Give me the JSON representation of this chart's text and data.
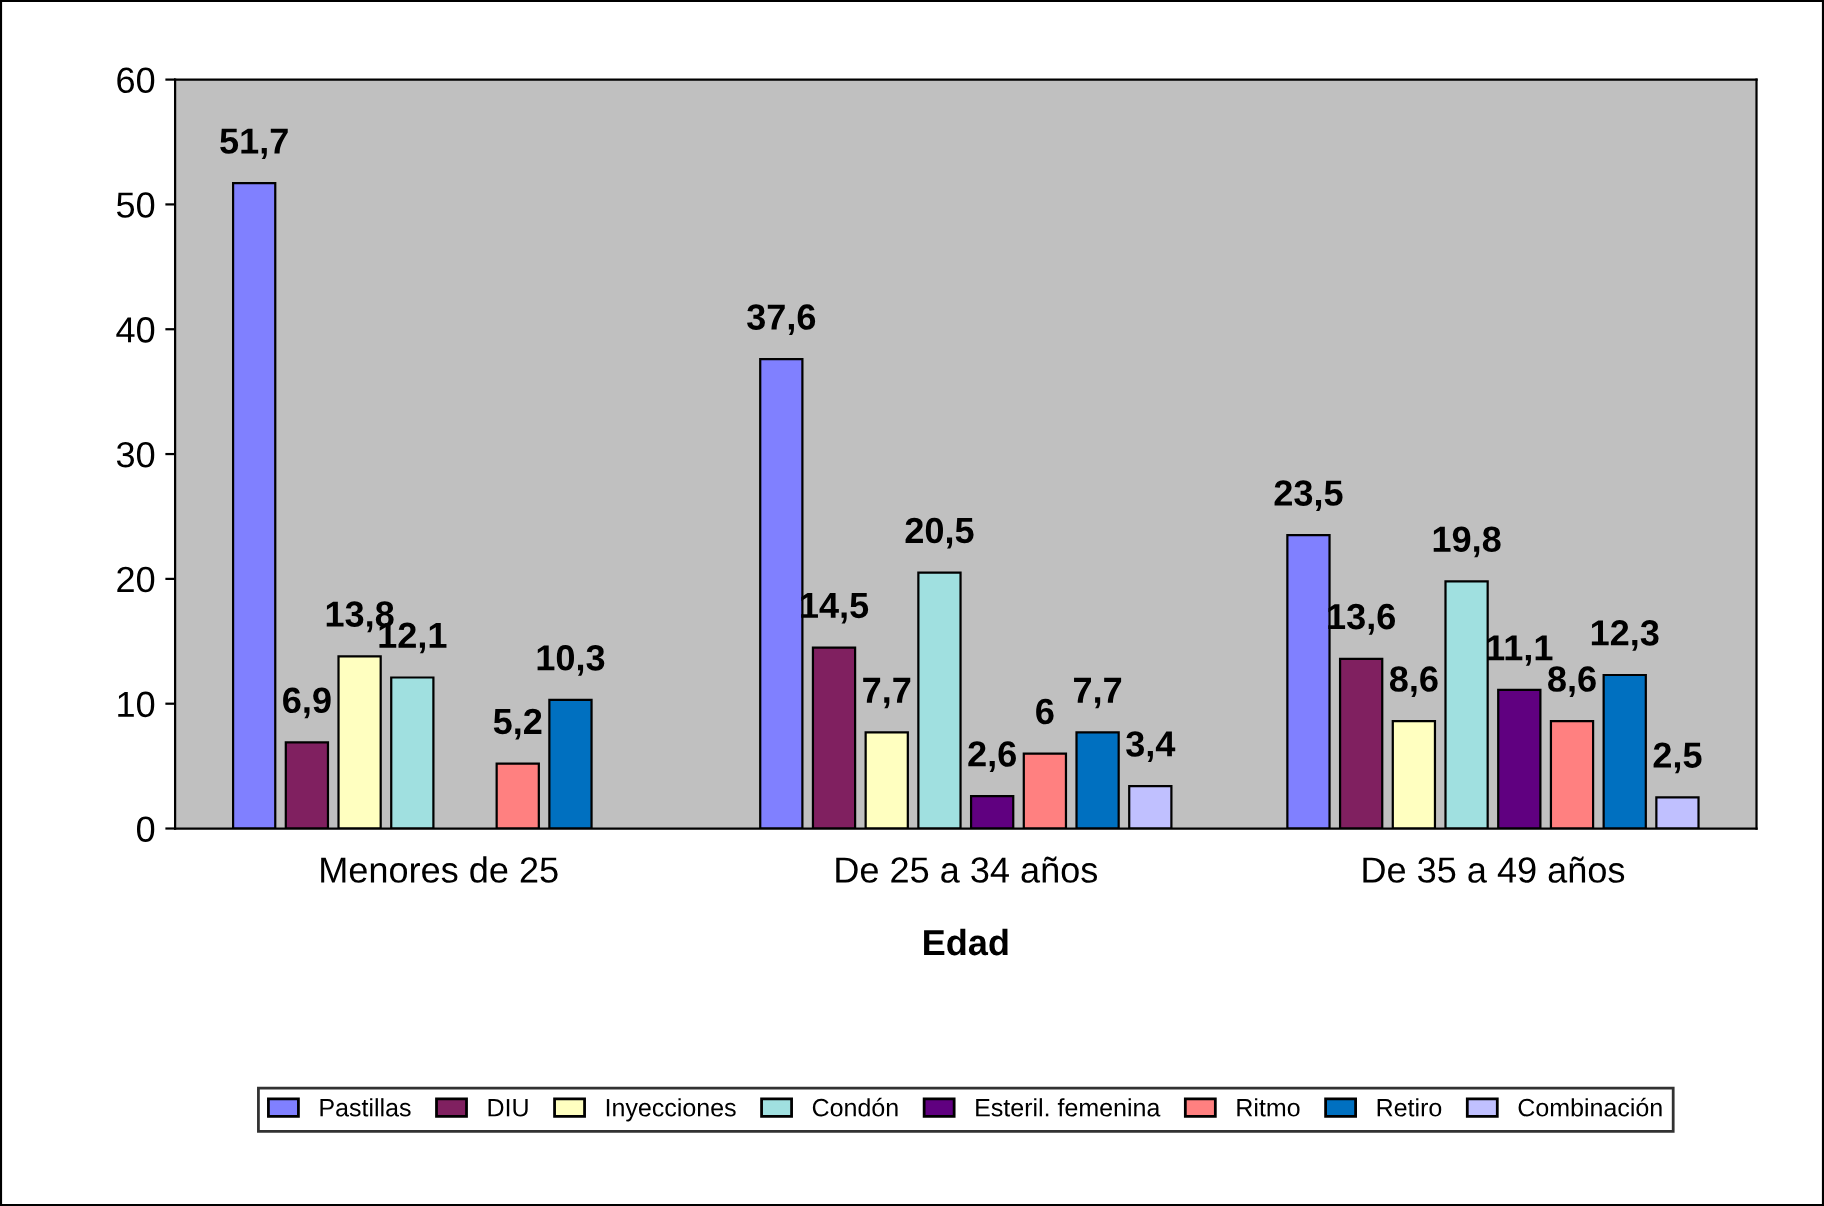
{
  "chart_data": {
    "type": "bar",
    "xlabel": "Edad",
    "categories": [
      "Menores de 25",
      "De 25 a 34 años",
      "De 35 a 49 años"
    ],
    "series": [
      {
        "name": "Pastillas",
        "color": "#8080ff",
        "values": [
          51.7,
          37.6,
          23.5
        ],
        "value_labels": [
          "51,7",
          "37,6",
          "23,5"
        ]
      },
      {
        "name": "DIU",
        "color": "#802060",
        "values": [
          6.9,
          14.5,
          13.6
        ],
        "value_labels": [
          "6,9",
          "14,5",
          "13,6"
        ]
      },
      {
        "name": "Inyecciones",
        "color": "#ffffc0",
        "values": [
          13.8,
          7.7,
          8.6
        ],
        "value_labels": [
          "13,8",
          "7,7",
          "8,6"
        ]
      },
      {
        "name": "Condón",
        "color": "#a0e0e0",
        "values": [
          12.1,
          20.5,
          19.8
        ],
        "value_labels": [
          "12,1",
          "20,5",
          "19,8"
        ]
      },
      {
        "name": "Esteril. femenina",
        "color": "#600080",
        "values": [
          null,
          2.6,
          11.1
        ],
        "value_labels": [
          null,
          "2,6",
          "11,1"
        ]
      },
      {
        "name": "Ritmo",
        "color": "#ff8080",
        "values": [
          5.2,
          6,
          8.6
        ],
        "value_labels": [
          "5,2",
          "6",
          "8,6"
        ]
      },
      {
        "name": "Retiro",
        "color": "#0070c0",
        "values": [
          10.3,
          7.7,
          12.3
        ],
        "value_labels": [
          "10,3",
          "7,7",
          "12,3"
        ]
      },
      {
        "name": "Combinación",
        "color": "#c0c0ff",
        "values": [
          null,
          3.4,
          2.5
        ],
        "value_labels": [
          null,
          "3,4",
          "2,5"
        ]
      }
    ],
    "ylim": [
      0,
      60
    ],
    "yticks": [
      0,
      10,
      20,
      30,
      40,
      50,
      60
    ],
    "grid": false,
    "legend": "bottom"
  }
}
